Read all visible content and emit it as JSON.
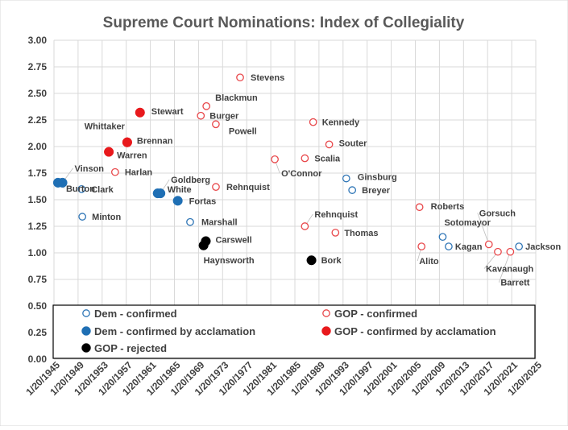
{
  "chart_data": {
    "type": "scatter",
    "title": "Supreme Court Nominations:  Index of Collegiality",
    "xlabel": "",
    "ylabel": "",
    "x_range": [
      "1945-01-20",
      "2025-01-20"
    ],
    "ylim": [
      0,
      3
    ],
    "y_ticks": [
      "0.00",
      "0.25",
      "0.50",
      "0.75",
      "1.00",
      "1.25",
      "1.50",
      "1.75",
      "2.00",
      "2.25",
      "2.50",
      "2.75",
      "3.00"
    ],
    "x_ticks": [
      "1/20/1945",
      "1/20/1949",
      "1/20/1953",
      "1/20/1957",
      "1/20/1961",
      "1/20/1965",
      "1/20/1969",
      "1/20/1973",
      "1/20/1977",
      "1/20/1981",
      "1/20/1985",
      "1/20/1989",
      "1/20/1993",
      "1/20/1997",
      "1/20/2001",
      "1/20/2005",
      "1/20/2009",
      "1/20/2013",
      "1/20/2017",
      "1/20/2021",
      "1/20/2025"
    ],
    "grid": true,
    "legend_position": "bottom",
    "series": [
      {
        "name": "Dem - confirmed",
        "color": "#2E75B6",
        "filled": false,
        "points": [
          {
            "label": "Clark",
            "x": "1949-08-19",
            "y": 1.6
          },
          {
            "label": "Minton",
            "x": "1949-10-04",
            "y": 1.34
          },
          {
            "label": "Marshall",
            "x": "1967-08-30",
            "y": 1.29
          },
          {
            "label": "Ginsburg",
            "x": "1993-08-03",
            "y": 1.7
          },
          {
            "label": "Breyer",
            "x": "1994-07-29",
            "y": 1.59
          },
          {
            "label": "Sotomayor",
            "x": "2009-08-06",
            "y": 1.15
          },
          {
            "label": "Kagan",
            "x": "2010-08-05",
            "y": 1.06
          },
          {
            "label": "Jackson",
            "x": "2022-04-07",
            "y": 1.06
          }
        ]
      },
      {
        "name": "Dem - confirmed by acclamation",
        "color": "#1F6FB4",
        "filled": true,
        "points": [
          {
            "label": "Vinson",
            "x": "1946-06-20",
            "y": 1.66
          },
          {
            "label": "Burton",
            "x": "1945-09-19",
            "y": 1.66
          },
          {
            "label": "White",
            "x": "1962-04-11",
            "y": 1.56
          },
          {
            "label": "Goldberg",
            "x": "1962-09-25",
            "y": 1.56
          },
          {
            "label": "Fortas",
            "x": "1965-08-11",
            "y": 1.49
          }
        ]
      },
      {
        "name": "GOP - confirmed",
        "color": "#E8474A",
        "filled": false,
        "points": [
          {
            "label": "Harlan",
            "x": "1955-03-16",
            "y": 1.76
          },
          {
            "label": "Burger",
            "x": "1969-06-09",
            "y": 2.29
          },
          {
            "label": "Blackmun",
            "x": "1970-05-12",
            "y": 2.38
          },
          {
            "label": "Powell",
            "x": "1971-12-06",
            "y": 2.21
          },
          {
            "label": "Rehnquist",
            "x": "1971-12-10",
            "y": 1.62
          },
          {
            "label": "Stevens",
            "x": "1975-12-17",
            "y": 2.65
          },
          {
            "label": "O'Connor",
            "x": "1981-09-21",
            "y": 1.88
          },
          {
            "label": "Rehnquist",
            "x": "1986-09-17",
            "y": 1.25
          },
          {
            "label": "Scalia",
            "x": "1986-09-17",
            "y": 1.89
          },
          {
            "label": "Kennedy",
            "x": "1988-02-03",
            "y": 2.23
          },
          {
            "label": "Souter",
            "x": "1990-10-02",
            "y": 2.02
          },
          {
            "label": "Thomas",
            "x": "1991-10-15",
            "y": 1.19
          },
          {
            "label": "Roberts",
            "x": "2005-09-29",
            "y": 1.43
          },
          {
            "label": "Alito",
            "x": "2006-01-31",
            "y": 1.06
          },
          {
            "label": "Gorsuch",
            "x": "2017-04-07",
            "y": 1.08
          },
          {
            "label": "Kavanaugh",
            "x": "2018-10-06",
            "y": 1.01
          },
          {
            "label": "Barrett",
            "x": "2020-10-26",
            "y": 1.01
          }
        ]
      },
      {
        "name": "GOP - confirmed by acclamation",
        "color": "#E8191C",
        "filled": true,
        "points": [
          {
            "label": "Warren",
            "x": "1954-03-01",
            "y": 1.95
          },
          {
            "label": "Whittaker",
            "x": "1957-03-19",
            "y": 2.04
          },
          {
            "label": "Brennan",
            "x": "1957-03-19",
            "y": 2.04
          },
          {
            "label": "Stewart",
            "x": "1959-05-05",
            "y": 2.32
          }
        ]
      },
      {
        "name": "GOP - rejected",
        "color": "#000000",
        "filled": true,
        "points": [
          {
            "label": "Haynsworth",
            "x": "1969-11-21",
            "y": 1.07
          },
          {
            "label": "Carswell",
            "x": "1970-04-08",
            "y": 1.11
          },
          {
            "label": "Bork",
            "x": "1987-10-23",
            "y": 0.93
          }
        ]
      }
    ]
  }
}
